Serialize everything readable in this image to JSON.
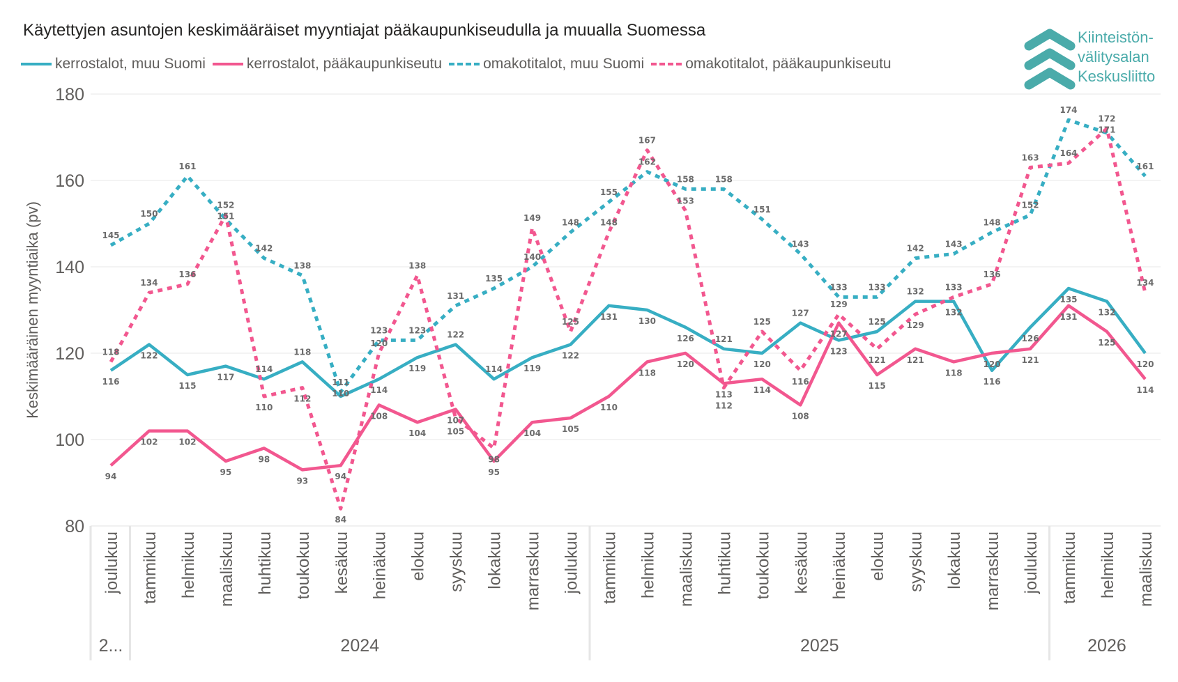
{
  "title": "Käytettyjen asuntojen keskimääräiset myyntiajat pääkaupunkiseudulla ja muualla Suomessa",
  "logo": {
    "lines": [
      "Kiinteistön-",
      "välitysalan",
      "Keskusliitto"
    ],
    "color": "#4aabaa"
  },
  "chart_data": {
    "type": "line",
    "title": "Käytettyjen asuntojen keskimääräiset myyntiajat pääkaupunkiseudulla ja muualla Suomessa",
    "xlabel": "",
    "ylabel": "Keskimääräinen myyntiaika (pv)",
    "ylim": [
      80,
      180
    ],
    "yticks": [
      80,
      100,
      120,
      140,
      160,
      180
    ],
    "grid": true,
    "legend_position": "top-left",
    "categories": [
      "joulukuu",
      "tammikuu",
      "helmikuu",
      "maaliskuu",
      "huhtikuu",
      "toukokuu",
      "kesäkuu",
      "heinäkuu",
      "elokuu",
      "syyskuu",
      "lokakuu",
      "marraskuu",
      "joulukuu",
      "tammikuu",
      "helmikuu",
      "maaliskuu",
      "huhtikuu",
      "toukokuu",
      "kesäkuu",
      "heinäkuu",
      "elokuu",
      "syyskuu",
      "lokakuu",
      "marraskuu",
      "joulukuu",
      "tammikuu",
      "helmikuu",
      "maaliskuu"
    ],
    "year_groups": [
      {
        "label": "2...",
        "count": 1
      },
      {
        "label": "2024",
        "count": 12
      },
      {
        "label": "2025",
        "count": 12
      },
      {
        "label": "2026",
        "count": 3
      }
    ],
    "series": [
      {
        "name": "kerrostalot, muu Suomi",
        "color": "#37aec3",
        "style": "solid",
        "values": [
          116,
          122,
          115,
          117,
          114,
          118,
          110,
          114,
          119,
          122,
          114,
          119,
          122,
          131,
          130,
          126,
          121,
          120,
          127,
          123,
          125,
          132,
          132,
          116,
          126,
          135,
          132,
          120
        ]
      },
      {
        "name": "kerrostalot, pääkaupunkiseutu",
        "color": "#f2578f",
        "style": "solid",
        "values": [
          94,
          102,
          102,
          95,
          98,
          93,
          94,
          108,
          104,
          107,
          95,
          104,
          105,
          110,
          118,
          120,
          113,
          114,
          108,
          127,
          115,
          121,
          118,
          120,
          121,
          131,
          125,
          114
        ]
      },
      {
        "name": "omakotitalot, muu Suomi",
        "color": "#37aec3",
        "style": "dotted",
        "values": [
          145,
          150,
          161,
          151,
          142,
          138,
          111,
          123,
          123,
          131,
          135,
          140,
          148,
          155,
          162,
          158,
          158,
          151,
          143,
          133,
          133,
          142,
          143,
          148,
          152,
          174,
          171,
          161
        ]
      },
      {
        "name": "omakotitalot, pääkaupunkiseutu",
        "color": "#f2578f",
        "style": "dotted",
        "values": [
          118,
          134,
          136,
          152,
          110,
          112,
          84,
          120,
          138,
          105,
          98,
          149,
          125,
          148,
          167,
          153,
          112,
          125,
          116,
          129,
          121,
          129,
          133,
          136,
          163,
          164,
          172,
          134
        ]
      }
    ]
  }
}
